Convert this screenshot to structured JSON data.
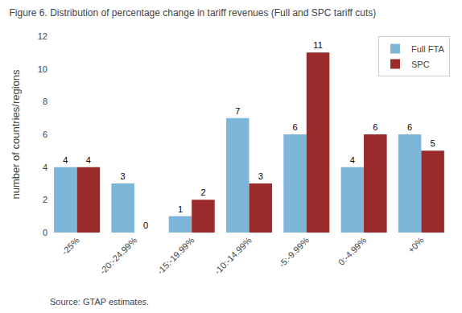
{
  "chart_data": {
    "type": "bar",
    "title": "Figure 6. Distribution of percentage change in tariff revenues (Full and SPC tariff cuts)",
    "categories": [
      "-25%",
      "-20:-24.99%",
      "-15:-19.99%",
      "-10:-14.99%",
      "-5:-9.99%",
      "0:-4.99%",
      "+0%"
    ],
    "series": [
      {
        "name": "Full FTA",
        "color": "#7EB6D9",
        "values": [
          4,
          3,
          1,
          7,
          6,
          4,
          6
        ]
      },
      {
        "name": "SPC",
        "color": "#9B2A2A",
        "values": [
          4,
          0,
          2,
          3,
          11,
          6,
          5
        ]
      }
    ],
    "ylabel": "number of countries/regions",
    "ylim": [
      0,
      12
    ],
    "yticks": [
      0,
      2,
      4,
      6,
      8,
      10,
      12
    ],
    "grid": false,
    "legend": "upper right",
    "data_labels": true,
    "annotations": [
      "Source: GTAP estimates."
    ]
  }
}
